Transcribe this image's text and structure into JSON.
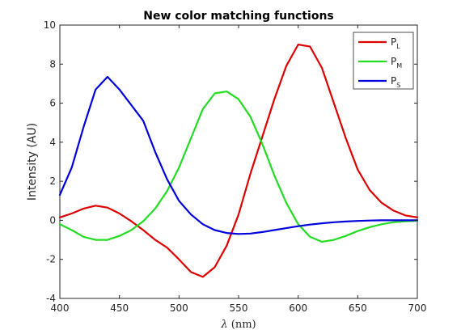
{
  "chart_data": {
    "type": "line",
    "title": "New color matching functions",
    "xlabel_symbol": "λ",
    "xlabel_unit": "(nm)",
    "ylabel": "Intensity (AU)",
    "xlim": [
      400,
      700
    ],
    "ylim": [
      -4,
      10
    ],
    "xticks": [
      400,
      450,
      500,
      550,
      600,
      650,
      700
    ],
    "yticks": [
      -4,
      -2,
      0,
      2,
      4,
      6,
      8,
      10
    ],
    "grid": false,
    "legend_position": "top-right",
    "x": [
      400,
      410,
      420,
      430,
      440,
      450,
      460,
      470,
      480,
      490,
      500,
      510,
      520,
      530,
      540,
      550,
      560,
      570,
      580,
      590,
      600,
      610,
      620,
      630,
      640,
      650,
      660,
      670,
      680,
      690,
      700
    ],
    "series": [
      {
        "name": "P",
        "subscript": "L",
        "color": "#dd0000",
        "values": [
          0.15,
          0.35,
          0.6,
          0.75,
          0.65,
          0.35,
          -0.05,
          -0.5,
          -1.0,
          -1.4,
          -2.0,
          -2.65,
          -2.9,
          -2.4,
          -1.3,
          0.3,
          2.4,
          4.3,
          6.2,
          7.9,
          9.0,
          8.9,
          7.8,
          6.0,
          4.2,
          2.6,
          1.55,
          0.9,
          0.5,
          0.25,
          0.15
        ]
      },
      {
        "name": "P",
        "subscript": "M",
        "color": "#22dd22",
        "values": [
          -0.2,
          -0.5,
          -0.85,
          -1.0,
          -1.0,
          -0.8,
          -0.5,
          -0.05,
          0.6,
          1.5,
          2.7,
          4.2,
          5.7,
          6.5,
          6.6,
          6.2,
          5.3,
          3.9,
          2.3,
          0.9,
          -0.2,
          -0.85,
          -1.1,
          -1.0,
          -0.8,
          -0.55,
          -0.35,
          -0.2,
          -0.1,
          -0.05,
          -0.02
        ]
      },
      {
        "name": "P",
        "subscript": "S",
        "color": "#0000dd",
        "values": [
          1.3,
          2.7,
          4.8,
          6.7,
          7.35,
          6.7,
          5.9,
          5.1,
          3.5,
          2.1,
          1.0,
          0.3,
          -0.2,
          -0.5,
          -0.65,
          -0.7,
          -0.68,
          -0.6,
          -0.5,
          -0.4,
          -0.3,
          -0.22,
          -0.15,
          -0.1,
          -0.06,
          -0.03,
          -0.01,
          0.0,
          0.0,
          0.0,
          0.0
        ]
      }
    ]
  }
}
